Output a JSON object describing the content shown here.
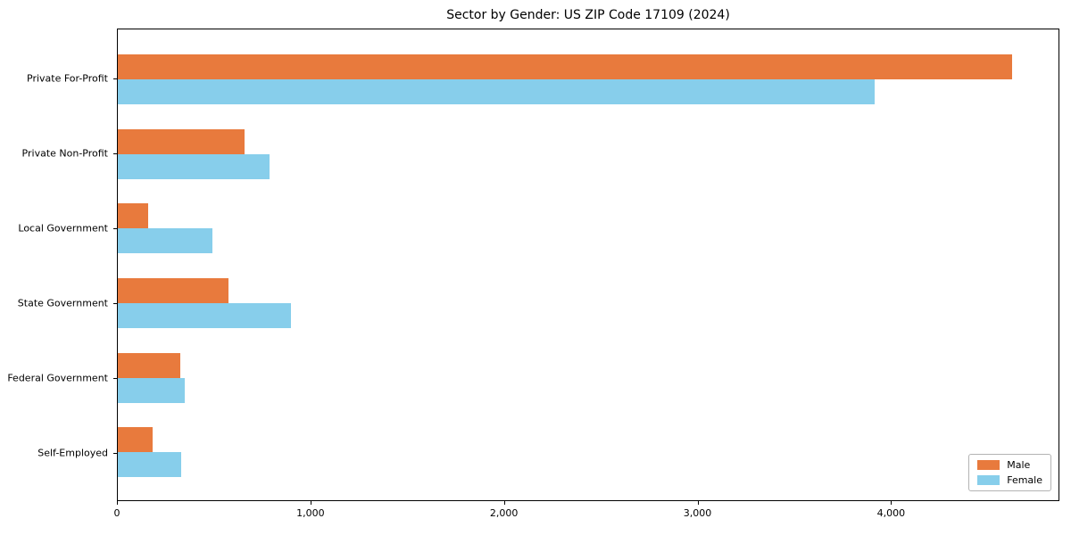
{
  "chart_data": {
    "type": "bar",
    "orientation": "horizontal",
    "title": "Sector by Gender: US ZIP Code 17109 (2024)",
    "categories": [
      "Private For-Profit",
      "Private Non-Profit",
      "Local Government",
      "State Government",
      "Federal Government",
      "Self-Employed"
    ],
    "series": [
      {
        "name": "Male",
        "color": "#e87a3d",
        "values": [
          4630,
          655,
          155,
          575,
          325,
          180
        ]
      },
      {
        "name": "Female",
        "color": "#87ceeb",
        "values": [
          3920,
          785,
          490,
          895,
          345,
          330
        ]
      }
    ],
    "xlabel": "",
    "ylabel": "",
    "xlim": [
      0,
      4870
    ],
    "xticks": [
      {
        "value": 0,
        "label": "0"
      },
      {
        "value": 1000,
        "label": "1,000"
      },
      {
        "value": 2000,
        "label": "2,000"
      },
      {
        "value": 3000,
        "label": "3,000"
      },
      {
        "value": 4000,
        "label": "4,000"
      }
    ],
    "grid": false,
    "legend": {
      "position": "lower-right",
      "entries": [
        "Male",
        "Female"
      ]
    },
    "colors": {
      "male": "#e87a3d",
      "female": "#87ceeb",
      "spine": "#000000",
      "background": "#ffffff"
    }
  }
}
